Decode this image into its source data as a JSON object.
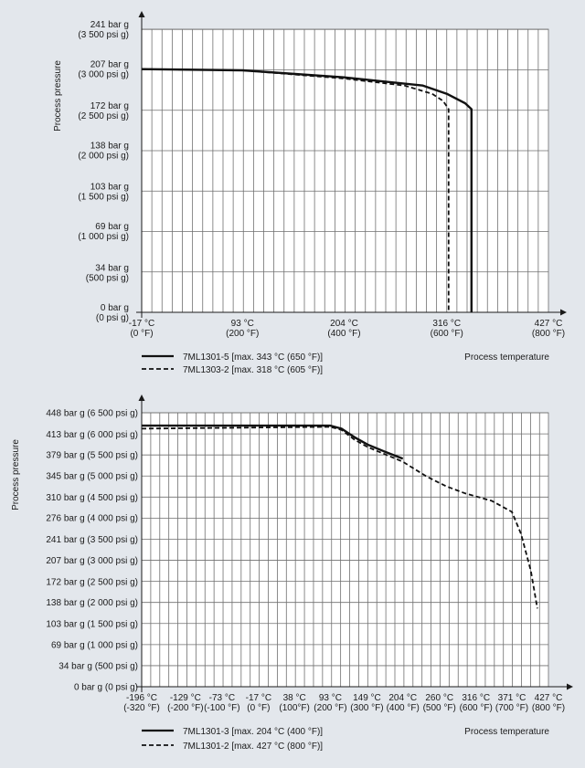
{
  "chart_data": [
    {
      "type": "line",
      "ylabel": "Process pressure",
      "xlabel": "Process temperature",
      "grid": true,
      "legend_position": "bottom-left",
      "x_ticks": [
        {
          "value": -17,
          "l1": "-17 °C",
          "l2": "(0 °F)"
        },
        {
          "value": 93,
          "l1": "93 °C",
          "l2": "(200 °F)"
        },
        {
          "value": 204,
          "l1": "204 °C",
          "l2": "(400 °F)"
        },
        {
          "value": 316,
          "l1": "316 °C",
          "l2": "(600 °F)"
        },
        {
          "value": 427,
          "l1": "427 °C",
          "l2": "(800 °F)"
        }
      ],
      "y_ticks": [
        {
          "value": 0,
          "l1": "0 bar g",
          "l2": "(0 psi g)"
        },
        {
          "value": 34,
          "l1": "34 bar g",
          "l2": "(500 psi g)"
        },
        {
          "value": 69,
          "l1": "69 bar g",
          "l2": "(1 000 psi g)"
        },
        {
          "value": 103,
          "l1": "103 bar g",
          "l2": "(1 500 psi g)"
        },
        {
          "value": 138,
          "l1": "138 bar g",
          "l2": "(2 000 psi g)"
        },
        {
          "value": 172,
          "l1": "172 bar g",
          "l2": "(2 500 psi g)"
        },
        {
          "value": 207,
          "l1": "207 bar g",
          "l2": "(3 000 psi g)"
        },
        {
          "value": 241,
          "l1": "241 bar g",
          "l2": "(3 500 psi g)"
        }
      ],
      "xlim": [
        -17,
        427
      ],
      "ylim": [
        0,
        241
      ],
      "x_minor_step": 11.1,
      "y_minor_step": 34.4,
      "series": [
        {
          "name": "7ML1301-5 [max. 343 °C (650 °F)]",
          "style": "solid",
          "points": [
            [
              -17,
              207
            ],
            [
              93,
              206
            ],
            [
              204,
              200
            ],
            [
              290,
              193
            ],
            [
              316,
              186
            ],
            [
              336,
              178
            ],
            [
              343,
              173
            ],
            [
              343,
              0
            ]
          ]
        },
        {
          "name": "7ML1303-2 [max. 318 °C (605 °F)]",
          "style": "dashed",
          "points": [
            [
              -17,
              207
            ],
            [
              93,
              206
            ],
            [
              204,
              199
            ],
            [
              270,
              193
            ],
            [
              300,
              186
            ],
            [
              312,
              180
            ],
            [
              318,
              173
            ],
            [
              318,
              0
            ]
          ]
        }
      ]
    },
    {
      "type": "line",
      "ylabel": "Process pressure",
      "xlabel": "Process temperature",
      "grid": true,
      "legend_position": "bottom-left",
      "x_ticks": [
        {
          "value": -196,
          "l1": "-196 °C",
          "l2": "(-320 °F)"
        },
        {
          "value": -129,
          "l1": "-129 °C",
          "l2": "(-200 °F)"
        },
        {
          "value": -73,
          "l1": "-73 °C",
          "l2": "(-100 °F)"
        },
        {
          "value": -17,
          "l1": "-17 °C",
          "l2": "(0 °F)"
        },
        {
          "value": 38,
          "l1": "38 °C",
          "l2": "(100°F)"
        },
        {
          "value": 93,
          "l1": "93 °C",
          "l2": "(200 °F)"
        },
        {
          "value": 149,
          "l1": "149 °C",
          "l2": "(300 °F)"
        },
        {
          "value": 204,
          "l1": "204 °C",
          "l2": "(400 °F)"
        },
        {
          "value": 260,
          "l1": "260 °C",
          "l2": "(500 °F)"
        },
        {
          "value": 316,
          "l1": "316 °C",
          "l2": "(600 °F)"
        },
        {
          "value": 371,
          "l1": "371 °C",
          "l2": "(700 °F)"
        },
        {
          "value": 427,
          "l1": "427 °C",
          "l2": "(800 °F)"
        }
      ],
      "y_ticks": [
        {
          "value": 0,
          "l1": "0 bar g (0 psi g)"
        },
        {
          "value": 34,
          "l1": "34 bar g (500 psi g)"
        },
        {
          "value": 69,
          "l1": "69 bar g (1 000 psi g)"
        },
        {
          "value": 103,
          "l1": "103 bar g (1 500 psi g)"
        },
        {
          "value": 138,
          "l1": "138 bar g (2 000 psi g)"
        },
        {
          "value": 172,
          "l1": "172 bar g (2 500 psi g)"
        },
        {
          "value": 207,
          "l1": "207 bar g (3 000 psi g)"
        },
        {
          "value": 241,
          "l1": "241 bar g (3 500 psi g)"
        },
        {
          "value": 276,
          "l1": "276 bar g (4 000 psi g)"
        },
        {
          "value": 310,
          "l1": "310 bar g (4 500 psi g)"
        },
        {
          "value": 345,
          "l1": "345 bar g (5 000 psi g)"
        },
        {
          "value": 379,
          "l1": "379 bar g (5 500 psi g)"
        },
        {
          "value": 413,
          "l1": "413 bar g (6 000 psi g)"
        },
        {
          "value": 448,
          "l1": "448 bar g (6 500 psi g)"
        }
      ],
      "xlim": [
        -196,
        427
      ],
      "ylim": [
        0,
        448
      ],
      "x_minor_step": 13.85,
      "y_minor_step": 34.46,
      "series": [
        {
          "name": "7ML1301-3 [max. 204 °C (400 °F)]",
          "style": "solid",
          "points": [
            [
              -196,
              427
            ],
            [
              93,
              427
            ],
            [
              110,
              422
            ],
            [
              130,
              408
            ],
            [
              150,
              396
            ],
            [
              175,
              385
            ],
            [
              204,
              373
            ]
          ]
        },
        {
          "name": "7ML1301-2 [max. 427 °C (800 °F)]",
          "style": "dashed",
          "points": [
            [
              -196,
              422
            ],
            [
              93,
              425
            ],
            [
              110,
              420
            ],
            [
              130,
              404
            ],
            [
              150,
              392
            ],
            [
              204,
              368
            ],
            [
              240,
              344
            ],
            [
              270,
              328
            ],
            [
              300,
              316
            ],
            [
              340,
              304
            ],
            [
              371,
              286
            ],
            [
              385,
              250
            ],
            [
              400,
              190
            ],
            [
              410,
              128
            ]
          ]
        }
      ]
    }
  ]
}
